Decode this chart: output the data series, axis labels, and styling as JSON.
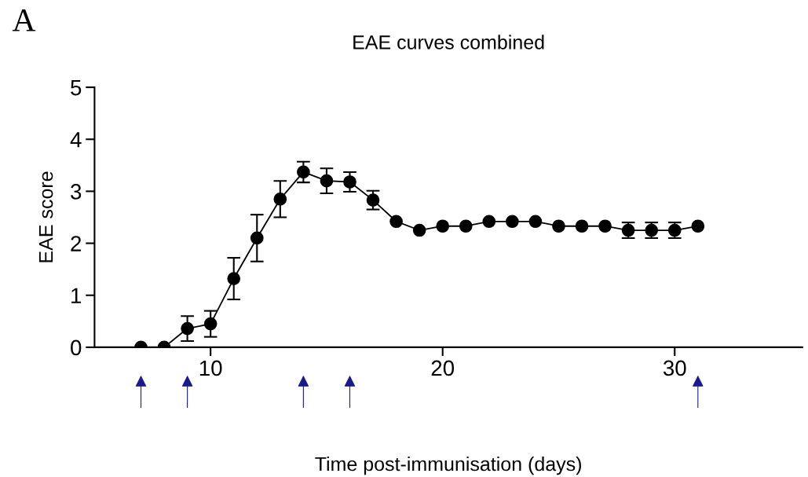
{
  "chart_data": {
    "type": "line",
    "title": "EAE curves combined",
    "xlabel": "Time post-immunisation (days)",
    "ylabel": "EAE score",
    "x": [
      7,
      8,
      9,
      10,
      11,
      12,
      13,
      14,
      15,
      16,
      17,
      18,
      19,
      20,
      21,
      22,
      23,
      24,
      25,
      26,
      27,
      28,
      29,
      30,
      31
    ],
    "series": [
      {
        "color": "#000000",
        "values": [
          0,
          0,
          0.36,
          0.45,
          1.32,
          2.1,
          2.85,
          3.37,
          3.2,
          3.18,
          2.83,
          2.42,
          2.25,
          2.33,
          2.33,
          2.42,
          2.42,
          2.42,
          2.33,
          2.33,
          2.33,
          2.25,
          2.25,
          2.25,
          2.33
        ],
        "errors": [
          null,
          null,
          0.24,
          0.25,
          0.4,
          0.45,
          0.35,
          0.2,
          0.24,
          0.19,
          0.18,
          null,
          null,
          null,
          null,
          null,
          null,
          null,
          null,
          null,
          null,
          0.15,
          0.15,
          0.15,
          null
        ]
      }
    ],
    "xlim": [
      5,
      35.5
    ],
    "xticks": [
      10,
      20,
      30
    ],
    "ylim": [
      0,
      5
    ],
    "yticks": [
      0,
      1,
      2,
      3,
      4,
      5
    ],
    "marker": "circle",
    "line_style": "solid",
    "grid": false,
    "legend": false,
    "annotations": [
      "A"
    ]
  }
}
